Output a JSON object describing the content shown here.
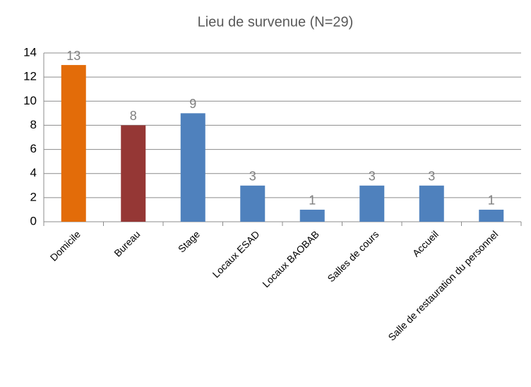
{
  "chart_data": {
    "type": "bar",
    "title": "Lieu de survenue (N=29)",
    "categories": [
      "Domicile",
      "Bureau",
      "Stage",
      "Locaux ESAD",
      "Locaux BAOBAB",
      "Salles de cours",
      "Accueil",
      "Salle de restauration du personnel"
    ],
    "values": [
      13,
      8,
      9,
      3,
      1,
      3,
      3,
      1
    ],
    "colors": [
      "#e36c09",
      "#953735",
      "#4f81bd",
      "#4f81bd",
      "#4f81bd",
      "#4f81bd",
      "#4f81bd",
      "#4f81bd"
    ],
    "ylim": [
      0,
      14
    ],
    "yticks": [
      0,
      2,
      4,
      6,
      8,
      10,
      12,
      14
    ],
    "grid": true
  }
}
